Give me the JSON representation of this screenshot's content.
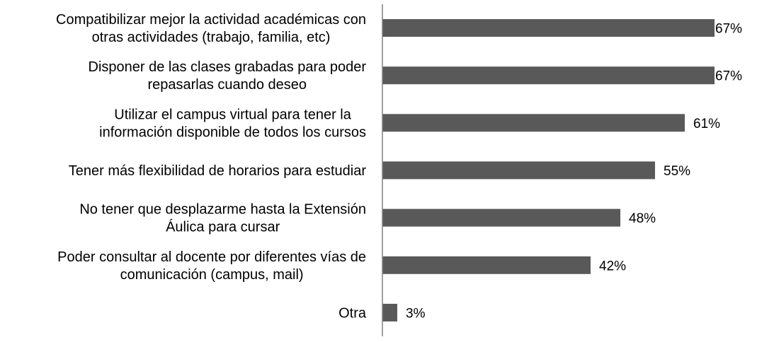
{
  "chart_data": {
    "type": "bar",
    "orientation": "horizontal",
    "categories": [
      [
        "Compatibilizar mejor la actividad académicas con",
        "otras actividades (trabajo, familia, etc)"
      ],
      [
        "Disponer de las clases  grabadas para poder",
        "repasarlas cuando deseo"
      ],
      [
        "Utilizar el campus virtual para tener la",
        "información disponible de todos los cursos"
      ],
      [
        "Tener más flexibilidad de horarios para estudiar"
      ],
      [
        "No tener que desplazarme hasta la Extensión",
        "Áulica para cursar"
      ],
      [
        "Poder consultar al docente por diferentes vías de",
        "comunicación (campus, mail)"
      ],
      [
        "Otra"
      ]
    ],
    "values": [
      67,
      67,
      61,
      55,
      48,
      42,
      3
    ],
    "value_labels": [
      "67%",
      "67%",
      "61%",
      "55%",
      "48%",
      "42%",
      "3%"
    ],
    "unit": "%",
    "xlim": [
      0,
      70
    ],
    "bar_color": "#595959",
    "axis_color": "#808080",
    "grid": false,
    "legend": "none"
  }
}
